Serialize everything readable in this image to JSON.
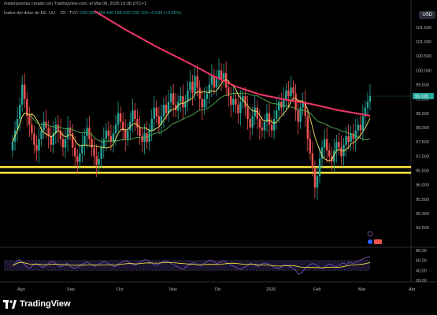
{
  "header": {
    "created_by": "misterpuertas creado con TradingView.com, el Mar 06, 2026 16:38 UTC+1"
  },
  "legend": {
    "symbol": "Índice del dólar de EE. UU. · 1D · TVC",
    "ohlc": "O99.039  H99.436  L98.542  C99.109  +0.048 (+0.05%)"
  },
  "currency_label": "USD",
  "price_axis": {
    "labels": [
      "101,500",
      "101,000",
      "100,500",
      "100,000",
      "99,500",
      "99,000",
      "98,500",
      "98,000",
      "97,500",
      "97,000",
      "96,500",
      "96,000",
      "95,500",
      "95,000",
      "94,500"
    ],
    "current_price": "99,109"
  },
  "rsi_axis": {
    "labels": [
      "80,00",
      "60,00",
      "40,00",
      "20,00"
    ]
  },
  "time_axis": {
    "labels": [
      "Ago",
      "Sep",
      "Oct",
      "Nov",
      "Dic",
      "2026",
      "Feb",
      "Mar",
      "Abr"
    ]
  },
  "colors": {
    "bull": "#26a69a",
    "bear": "#ef5350",
    "ma_long": "#f23667",
    "ma_mid": "#4caf50",
    "ma_short": "#f5e663",
    "support": "#ffeb3b",
    "rsi_line": "#7e57c2",
    "rsi_ma": "#ffeb3b",
    "last_price_bg": "#26a69a"
  },
  "support_zone": {
    "upper": 96.62,
    "lower": 96.42
  },
  "chart_data": {
    "type": "candlestick",
    "title": "",
    "ylim": [
      94.2,
      101.8
    ],
    "closes": [
      97.5,
      97.9,
      98.3,
      98.8,
      99.5,
      99.0,
      98.4,
      98.1,
      97.8,
      97.4,
      97.2,
      97.6,
      97.9,
      98.2,
      98.0,
      97.7,
      97.4,
      97.8,
      98.1,
      97.9,
      97.6,
      97.3,
      97.6,
      98.0,
      97.8,
      97.3,
      97.0,
      96.8,
      97.1,
      97.4,
      97.7,
      98.0,
      97.6,
      97.3,
      97.0,
      96.7,
      96.9,
      97.3,
      97.6,
      97.9,
      97.7,
      97.5,
      97.8,
      98.1,
      98.5,
      98.2,
      97.9,
      97.6,
      97.9,
      98.2,
      98.6,
      98.3,
      98.0,
      97.7,
      97.5,
      97.8,
      97.5,
      97.9,
      98.3,
      98.7,
      98.4,
      98.1,
      98.4,
      98.8,
      98.5,
      98.9,
      99.2,
      98.8,
      98.6,
      98.9,
      99.1,
      98.7,
      98.9,
      99.3,
      99.6,
      99.2,
      99.8,
      99.4,
      99.0,
      98.7,
      99.0,
      99.2,
      99.5,
      99.8,
      99.4,
      99.7,
      100.0,
      99.7,
      99.9,
      99.4,
      99.1,
      98.8,
      99.0,
      98.8,
      98.5,
      98.9,
      99.1,
      98.7,
      98.3,
      98.0,
      98.4,
      98.7,
      98.3,
      98.0,
      97.9,
      98.2,
      98.5,
      98.1,
      97.9,
      98.3,
      98.6,
      98.9,
      98.7,
      99.0,
      99.3,
      99.1,
      99.4,
      99.2,
      98.6,
      98.2,
      98.7,
      98.9,
      98.4,
      97.6,
      97.1,
      96.6,
      95.9,
      96.3,
      96.9,
      97.3,
      97.6,
      97.2,
      97.0,
      96.8,
      97.2,
      97.5,
      97.3,
      97.0,
      97.4,
      97.7,
      97.5,
      97.8,
      97.6,
      97.9,
      98.1,
      97.9,
      98.4,
      98.7,
      98.9,
      99.1
    ]
  },
  "chart_data_rsi": {
    "type": "line",
    "ylim": [
      20,
      80
    ],
    "values": [
      50,
      56,
      62,
      55,
      48,
      44,
      50,
      54,
      49,
      46,
      52,
      56,
      58,
      52,
      47,
      50,
      54,
      48,
      44,
      46,
      50,
      54,
      57,
      52,
      48,
      51,
      55,
      58,
      54,
      50,
      47,
      52,
      56,
      60,
      57,
      53,
      50,
      55,
      58,
      62,
      59,
      54,
      50,
      53,
      57,
      60,
      56,
      52,
      49,
      45,
      42,
      47,
      52,
      56,
      52,
      49,
      53,
      57,
      61,
      58,
      54,
      56,
      59,
      55,
      51,
      48,
      45,
      42,
      46,
      50,
      54,
      51,
      48,
      52,
      55,
      53,
      49,
      46,
      43,
      47,
      51,
      49,
      45,
      41,
      32,
      36,
      44,
      50,
      54,
      51,
      47,
      44,
      49,
      53,
      50,
      47,
      51,
      55,
      52,
      56,
      54,
      57,
      60,
      63,
      66,
      68
    ]
  }
}
